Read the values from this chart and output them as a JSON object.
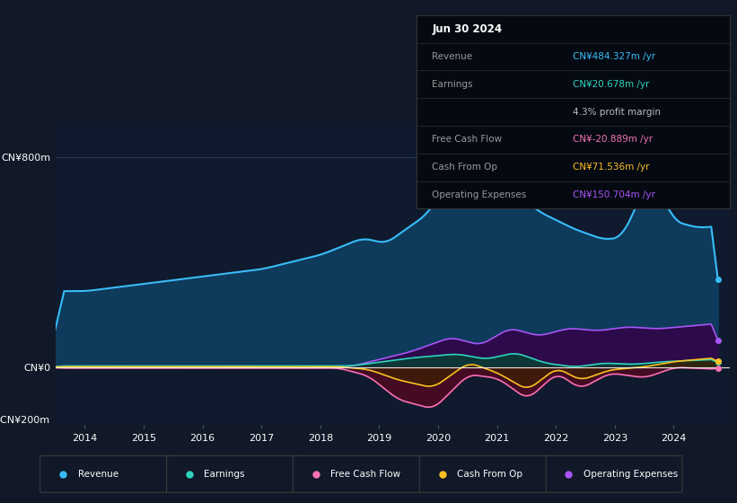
{
  "background_color": "#111827",
  "plot_bg_color": "#0f1a2e",
  "colors": {
    "revenue": "#38bdf8",
    "revenue_fill": "#0e3a5c",
    "earnings": "#2dd4bf",
    "earnings_fill": "#0a3d35",
    "free_cash_flow": "#f472b6",
    "free_cash_flow_fill": "#4a0a22",
    "cash_from_op": "#fbbf24",
    "cash_from_op_fill": "#3d2000",
    "operating_expenses": "#a855f7",
    "operating_expenses_fill": "#2d0a4a"
  },
  "legend": [
    {
      "label": "Revenue",
      "color": "#38bdf8"
    },
    {
      "label": "Earnings",
      "color": "#2dd4bf"
    },
    {
      "label": "Free Cash Flow",
      "color": "#f472b6"
    },
    {
      "label": "Cash From Op",
      "color": "#fbbf24"
    },
    {
      "label": "Operating Expenses",
      "color": "#a855f7"
    }
  ],
  "info_rows": [
    {
      "label": "Revenue",
      "value": "CN¥484.327m /yr",
      "value_color": "#38bdf8"
    },
    {
      "label": "Earnings",
      "value": "CN¥20.678m /yr",
      "value_color": "#2dd4bf"
    },
    {
      "label": "",
      "value": "4.3% profit margin",
      "value_color": "#bbbbbb"
    },
    {
      "label": "Free Cash Flow",
      "value": "CN¥-20.889m /yr",
      "value_color": "#f472b6"
    },
    {
      "label": "Cash From Op",
      "value": "CN¥71.536m /yr",
      "value_color": "#fbbf24"
    },
    {
      "label": "Operating Expenses",
      "value": "CN¥150.704m /yr",
      "value_color": "#a855f7"
    }
  ],
  "info_title": "Jun 30 2024"
}
